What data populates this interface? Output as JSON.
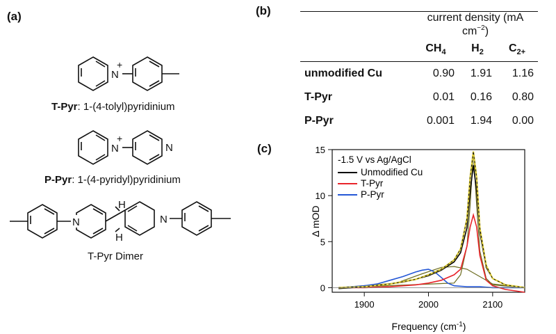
{
  "panels": {
    "a": "(a)",
    "b": "(b)",
    "c": "(c)"
  },
  "molecules": [
    {
      "name": "T-Pyr",
      "desc": ": 1-(4-tolyl)pyridinium"
    },
    {
      "name": "P-Pyr",
      "desc": ": 1-(4-pyridyl)pyridinium"
    },
    {
      "name": "",
      "desc": "T-Pyr Dimer"
    }
  ],
  "atoms": {
    "N": "N",
    "H": "H",
    "plus": "+"
  },
  "table": {
    "group_header": "current density (mA cm",
    "group_header_sup": "−2",
    "group_header_close": ")",
    "columns": [
      {
        "main": "CH",
        "sub": "4"
      },
      {
        "main": "H",
        "sub": "2"
      },
      {
        "main": "C",
        "sub": "2+"
      }
    ],
    "rows": [
      {
        "label": "unmodified Cu",
        "values": [
          "0.90",
          "1.91",
          "1.16"
        ]
      },
      {
        "label": "T-Pyr",
        "values": [
          "0.01",
          "0.16",
          "0.80"
        ]
      },
      {
        "label": "P-Pyr",
        "values": [
          "0.001",
          "1.94",
          "0.00"
        ]
      }
    ]
  },
  "chart_data": {
    "type": "line",
    "xlabel": "Frequency (cm",
    "xlabel_sup": "-1",
    "xlabel_close": ")",
    "ylabel": "Δ mOD",
    "xlim": [
      1850,
      2150
    ],
    "ylim": [
      -0.5,
      15
    ],
    "xticks": [
      1900,
      2000,
      2100
    ],
    "yticks": [
      0,
      5,
      10,
      15
    ],
    "legend_title": "-1.5 V vs Ag/AgCl",
    "series": [
      {
        "name": "Unmodified Cu",
        "color": "#000000",
        "x": [
          1860,
          1880,
          1900,
          1920,
          1940,
          1960,
          1980,
          2000,
          2020,
          2040,
          2050,
          2060,
          2065,
          2070,
          2075,
          2080,
          2090,
          2100,
          2120,
          2150
        ],
        "y": [
          -0.1,
          0,
          0.1,
          0.2,
          0.4,
          0.6,
          0.9,
          1.3,
          1.9,
          2.8,
          3.8,
          6.5,
          10.5,
          13.3,
          10.5,
          6,
          2.2,
          1.0,
          0.3,
          0
        ]
      },
      {
        "name": "T-Pyr",
        "color": "#e8242a",
        "x": [
          1860,
          1900,
          1940,
          1980,
          2000,
          2020,
          2040,
          2050,
          2060,
          2065,
          2070,
          2075,
          2080,
          2090,
          2100,
          2120,
          2150
        ],
        "y": [
          0,
          0,
          0.1,
          0.3,
          0.5,
          0.8,
          1.4,
          2.0,
          4.5,
          6.6,
          7.9,
          6.6,
          3.5,
          0.8,
          0.2,
          -0.2,
          -0.5
        ]
      },
      {
        "name": "P-Pyr",
        "color": "#2457d6",
        "x": [
          1860,
          1900,
          1920,
          1940,
          1960,
          1980,
          1990,
          2000,
          2010,
          2020,
          2030,
          2040,
          2060,
          2080,
          2100,
          2150
        ],
        "y": [
          0,
          0.2,
          0.4,
          0.8,
          1.2,
          1.7,
          1.9,
          2.0,
          1.7,
          1.1,
          0.5,
          0.2,
          0.1,
          0.1,
          0,
          0
        ]
      }
    ],
    "fit_total": {
      "color": "#e3d23a",
      "x": [
        1860,
        1900,
        1940,
        1980,
        2000,
        2020,
        2040,
        2050,
        2060,
        2065,
        2070,
        2075,
        2080,
        2090,
        2100,
        2120,
        2150
      ],
      "y": [
        0,
        0.1,
        0.4,
        0.9,
        1.4,
        2.0,
        3.0,
        4.2,
        7.5,
        12.0,
        14.8,
        12.0,
        6.5,
        2.4,
        1.0,
        0.3,
        0
      ]
    },
    "fit_components": [
      {
        "color": "#6b6b1e",
        "x": [
          1860,
          1950,
          1990,
          2020,
          2040,
          2060,
          2080,
          2100,
          2150
        ],
        "y": [
          0,
          0.5,
          1.5,
          2.2,
          2.3,
          2.0,
          1.2,
          0.4,
          0
        ]
      },
      {
        "color": "#6b6b1e",
        "x": [
          1860,
          2040,
          2050,
          2060,
          2065,
          2070,
          2075,
          2080,
          2090,
          2100,
          2150
        ],
        "y": [
          0,
          0.5,
          1.4,
          4.5,
          9,
          14.8,
          9,
          4,
          1.0,
          0.3,
          0
        ]
      }
    ]
  }
}
